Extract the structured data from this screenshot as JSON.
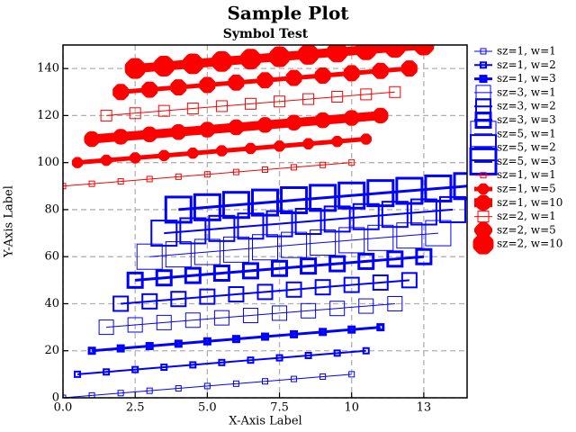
{
  "chart_data": {
    "type": "line",
    "title": "Sample Plot",
    "subtitle": "Symbol Test",
    "x_label": "X-Axis Label",
    "y_label": "Y-Axis Label",
    "xlim": [
      0,
      14
    ],
    "ylim": [
      0,
      150
    ],
    "xticks": [
      {
        "value": 0,
        "label": "0.0"
      },
      2.5,
      {
        "value": 5,
        "label": "5.0"
      },
      7.5,
      10,
      {
        "value": 12.5,
        "label": "13"
      }
    ],
    "yticks": [
      0,
      20,
      40,
      60,
      80,
      100,
      120,
      140
    ],
    "grid": true,
    "legend": "right",
    "series": [
      {
        "name": "sz=1, w=1",
        "color": "#0000ff",
        "marker": "square",
        "marker_size": 6,
        "line_width": 1,
        "x": [
          0,
          1,
          2,
          3,
          4,
          5,
          6,
          7,
          8,
          9,
          10
        ],
        "values": [
          0,
          1,
          2,
          3,
          4,
          5,
          6,
          7,
          8,
          9,
          10
        ]
      },
      {
        "name": "sz=1, w=2",
        "color": "#0000ff",
        "marker": "square",
        "marker_size": 6,
        "line_width": 2,
        "x": [
          0.5,
          1.5,
          2.5,
          3.5,
          4.5,
          5.5,
          6.5,
          7.5,
          8.5,
          9.5,
          10.5
        ],
        "values": [
          10,
          11,
          12,
          13,
          14,
          15,
          16,
          17,
          18,
          19,
          20
        ]
      },
      {
        "name": "sz=1, w=3",
        "color": "#0000ff",
        "marker": "square",
        "marker_size": 6,
        "line_width": 3,
        "x": [
          1,
          2,
          3,
          4,
          5,
          6,
          7,
          8,
          9,
          10,
          11
        ],
        "values": [
          20,
          21,
          22,
          23,
          24,
          25,
          26,
          27,
          28,
          29,
          30
        ]
      },
      {
        "name": "sz=3, w=1",
        "color": "#0000ff",
        "marker": "square",
        "marker_size": 16,
        "line_width": 1,
        "x": [
          1.5,
          2.5,
          3.5,
          4.5,
          5.5,
          6.5,
          7.5,
          8.5,
          9.5,
          10.5,
          11.5
        ],
        "values": [
          30,
          31,
          32,
          33,
          34,
          35,
          36,
          37,
          38,
          39,
          40
        ]
      },
      {
        "name": "sz=3, w=2",
        "color": "#0000ff",
        "marker": "square",
        "marker_size": 16,
        "line_width": 2,
        "x": [
          2,
          3,
          4,
          5,
          6,
          7,
          8,
          9,
          10,
          11,
          12
        ],
        "values": [
          40,
          41,
          42,
          43,
          44,
          45,
          46,
          47,
          48,
          49,
          50
        ]
      },
      {
        "name": "sz=3, w=3",
        "color": "#0000ff",
        "marker": "square",
        "marker_size": 16,
        "line_width": 3,
        "x": [
          2.5,
          3.5,
          4.5,
          5.5,
          6.5,
          7.5,
          8.5,
          9.5,
          10.5,
          11.5,
          12.5
        ],
        "values": [
          50,
          51,
          52,
          53,
          54,
          55,
          56,
          57,
          58,
          59,
          60
        ]
      },
      {
        "name": "sz=5, w=1",
        "color": "#0000ff",
        "marker": "square",
        "marker_size": 28,
        "line_width": 1,
        "x": [
          3,
          4,
          5,
          6,
          7,
          8,
          9,
          10,
          11,
          12,
          13
        ],
        "values": [
          60,
          61,
          62,
          63,
          64,
          65,
          66,
          67,
          68,
          69,
          70
        ]
      },
      {
        "name": "sz=5, w=2",
        "color": "#0000ff",
        "marker": "square",
        "marker_size": 28,
        "line_width": 2,
        "x": [
          3.5,
          4.5,
          5.5,
          6.5,
          7.5,
          8.5,
          9.5,
          10.5,
          11.5,
          12.5,
          13.5
        ],
        "values": [
          70,
          71,
          72,
          73,
          74,
          75,
          76,
          77,
          78,
          79,
          80
        ]
      },
      {
        "name": "sz=5, w=3",
        "color": "#0000ff",
        "marker": "square",
        "marker_size": 28,
        "line_width": 3,
        "x": [
          4,
          5,
          6,
          7,
          8,
          9,
          10,
          11,
          12,
          13,
          14
        ],
        "values": [
          80,
          81,
          82,
          83,
          84,
          85,
          86,
          87,
          88,
          89,
          90
        ]
      },
      {
        "name": "sz=1, w=1",
        "color": "#ff0000",
        "marker": "square",
        "marker_size": 6,
        "line_width": 1,
        "x": [
          0,
          1,
          2,
          3,
          4,
          5,
          6,
          7,
          8,
          9,
          10
        ],
        "values": [
          90,
          91,
          92,
          93,
          94,
          95,
          96,
          97,
          98,
          99,
          100
        ]
      },
      {
        "name": "sz=1, w=5",
        "color": "#ff0000",
        "marker": "octagon",
        "marker_size": 8,
        "line_width": 5,
        "x": [
          0.5,
          1.5,
          2.5,
          3.5,
          4.5,
          5.5,
          6.5,
          7.5,
          8.5,
          9.5,
          10.5
        ],
        "values": [
          100,
          101,
          102,
          103,
          104,
          105,
          106,
          107,
          108,
          109,
          110
        ]
      },
      {
        "name": "sz=1, w=10",
        "color": "#ff0000",
        "marker": "octagon",
        "marker_size": 8,
        "line_width": 10,
        "x": [
          1,
          2,
          3,
          4,
          5,
          6,
          7,
          8,
          9,
          10,
          11
        ],
        "values": [
          110,
          111,
          112,
          113,
          114,
          115,
          116,
          117,
          118,
          119,
          120
        ]
      },
      {
        "name": "sz=2, w=1",
        "color": "#ff0000",
        "marker": "square",
        "marker_size": 12,
        "line_width": 1,
        "x": [
          1.5,
          2.5,
          3.5,
          4.5,
          5.5,
          6.5,
          7.5,
          8.5,
          9.5,
          10.5,
          11.5
        ],
        "values": [
          120,
          121,
          122,
          123,
          124,
          125,
          126,
          127,
          128,
          129,
          130
        ]
      },
      {
        "name": "sz=2, w=5",
        "color": "#ff0000",
        "marker": "octagon",
        "marker_size": 14,
        "line_width": 5,
        "x": [
          2,
          3,
          4,
          5,
          6,
          7,
          8,
          9,
          10,
          11,
          12
        ],
        "values": [
          130,
          131,
          132,
          133,
          134,
          135,
          136,
          137,
          138,
          139,
          140
        ]
      },
      {
        "name": "sz=2, w=10",
        "color": "#ff0000",
        "marker": "octagon",
        "marker_size": 14,
        "line_width": 10,
        "x": [
          2.5,
          3.5,
          4.5,
          5.5,
          6.5,
          7.5,
          8.5,
          9.5,
          10.5,
          11.5,
          12.5
        ],
        "values": [
          140,
          141,
          142,
          143,
          144,
          145,
          146,
          147,
          148,
          149,
          150
        ]
      }
    ]
  }
}
